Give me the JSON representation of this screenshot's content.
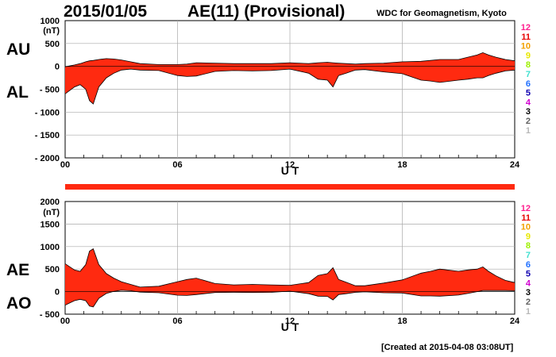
{
  "header": {
    "date": "2015/01/05",
    "index_title": "AE(11) (Provisional)",
    "source": "WDC for Geomagnetism, Kyoto"
  },
  "footer": {
    "created": "[Created at 2015-04-08 03:08UT]"
  },
  "palette": {
    "fill": "#ff2a10",
    "stroke": "#000000",
    "grid": "#aaaaaa"
  },
  "level_legend": {
    "labels": [
      "12",
      "11",
      "10",
      "9",
      "8",
      "7",
      "6",
      "5",
      "4",
      "3",
      "2",
      "1"
    ],
    "colors": [
      "#ff1f8f",
      "#e80000",
      "#f2a000",
      "#e8e800",
      "#9ef000",
      "#40e0d0",
      "#1f6fff",
      "#1000b0",
      "#d000d0",
      "#000000",
      "#606060",
      "#b8b8b8"
    ]
  },
  "chart_data": [
    {
      "type": "area",
      "name": "AU/AL",
      "side_labels": [
        "AU",
        "AL"
      ],
      "unit": "(nT)",
      "xlabel": "U T",
      "xlim": [
        0,
        24
      ],
      "xticks": [
        0,
        6,
        12,
        18,
        24
      ],
      "xtick_labels": [
        "00",
        "06",
        "12",
        "18",
        "24"
      ],
      "ylim": [
        -2000,
        1000
      ],
      "yticks": [
        1000,
        500,
        0,
        -500,
        -1000,
        -1500,
        -2000
      ],
      "ytick_labels": [
        "1000",
        "500",
        "0",
        "- 500",
        "- 1000",
        "- 1500",
        "- 2000"
      ],
      "grid": true,
      "x": [
        0,
        0.5,
        0.8,
        1.1,
        1.3,
        1.5,
        1.8,
        2.2,
        2.6,
        3.0,
        3.5,
        4.0,
        5.0,
        6.0,
        6.5,
        7.0,
        8.0,
        9.0,
        10.0,
        11.0,
        12.0,
        13.0,
        13.5,
        14.0,
        14.3,
        14.6,
        15.0,
        15.5,
        16.0,
        17.0,
        18.0,
        19.0,
        19.5,
        20.0,
        21.0,
        21.5,
        22.0,
        22.3,
        22.6,
        23.0,
        23.5,
        24.0
      ],
      "upper": [
        -10,
        30,
        60,
        100,
        120,
        130,
        150,
        170,
        160,
        140,
        100,
        60,
        40,
        40,
        50,
        80,
        70,
        60,
        60,
        60,
        80,
        60,
        80,
        90,
        80,
        70,
        60,
        50,
        60,
        70,
        100,
        110,
        130,
        150,
        150,
        200,
        250,
        300,
        250,
        200,
        150,
        120
      ],
      "lower": [
        -600,
        -450,
        -400,
        -500,
        -750,
        -820,
        -450,
        -250,
        -150,
        -80,
        -60,
        -80,
        -90,
        -200,
        -220,
        -210,
        -110,
        -90,
        -100,
        -90,
        -60,
        -150,
        -280,
        -300,
        -450,
        -200,
        -150,
        -80,
        -70,
        -120,
        -160,
        -300,
        -320,
        -350,
        -300,
        -280,
        -250,
        -250,
        -200,
        -150,
        -100,
        -80
      ]
    },
    {
      "type": "area",
      "name": "AE/AO",
      "side_labels": [
        "AE",
        "AO"
      ],
      "unit": "(nT)",
      "xlabel": "U T",
      "xlim": [
        0,
        24
      ],
      "xticks": [
        0,
        6,
        12,
        18,
        24
      ],
      "xtick_labels": [
        "00",
        "06",
        "12",
        "18",
        "24"
      ],
      "ylim": [
        -500,
        2000
      ],
      "yticks": [
        2000,
        1500,
        1000,
        500,
        0,
        -500
      ],
      "ytick_labels": [
        "2000",
        "1500",
        "1000",
        "500",
        "0",
        "- 500"
      ],
      "grid": true,
      "x": [
        0,
        0.5,
        0.8,
        1.1,
        1.3,
        1.5,
        1.8,
        2.2,
        2.6,
        3.0,
        3.5,
        4.0,
        5.0,
        6.0,
        6.5,
        7.0,
        8.0,
        9.0,
        10.0,
        11.0,
        12.0,
        13.0,
        13.5,
        14.0,
        14.3,
        14.6,
        15.0,
        15.5,
        16.0,
        17.0,
        18.0,
        19.0,
        19.5,
        20.0,
        21.0,
        21.5,
        22.0,
        22.3,
        22.6,
        23.0,
        23.5,
        24.0
      ],
      "upper": [
        620,
        480,
        450,
        600,
        900,
        950,
        600,
        400,
        300,
        220,
        160,
        100,
        120,
        220,
        270,
        300,
        180,
        150,
        160,
        150,
        140,
        200,
        360,
        400,
        530,
        270,
        210,
        130,
        130,
        190,
        260,
        410,
        450,
        500,
        450,
        480,
        500,
        550,
        450,
        350,
        250,
        200
      ],
      "lower": [
        -300,
        -200,
        -170,
        -200,
        -320,
        -340,
        -150,
        -40,
        5,
        30,
        20,
        -10,
        -25,
        -80,
        -85,
        -65,
        -20,
        -15,
        -20,
        -15,
        10,
        -45,
        -100,
        -105,
        -185,
        -65,
        -45,
        -15,
        -5,
        -25,
        -30,
        -95,
        -95,
        -100,
        -75,
        -40,
        0,
        25,
        25,
        25,
        25,
        20
      ]
    }
  ]
}
